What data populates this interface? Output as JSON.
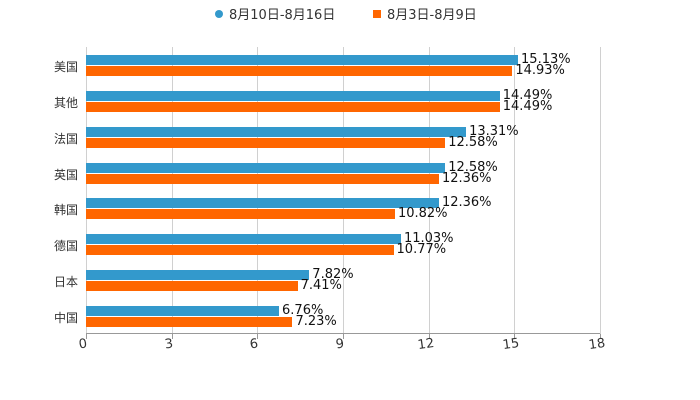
{
  "chart_data": {
    "type": "bar",
    "orientation": "horizontal",
    "title": "",
    "xlabel": "",
    "ylabel": "",
    "xlim": [
      0,
      18
    ],
    "xticks": [
      0,
      3,
      6,
      9,
      12,
      15,
      18
    ],
    "grid": true,
    "legend_position": "top",
    "categories": [
      "美国",
      "其他",
      "法国",
      "英国",
      "韩国",
      "德国",
      "日本",
      "中国"
    ],
    "series": [
      {
        "name": "8月10日-8月16日",
        "color": "#3399cc",
        "marker": "circle",
        "values": [
          15.13,
          14.49,
          13.31,
          12.58,
          12.36,
          11.03,
          7.82,
          6.76
        ],
        "labels": [
          "15.13%",
          "14.49%",
          "13.31%",
          "12.58%",
          "12.36%",
          "11.03%",
          "7.82%",
          "6.76%"
        ]
      },
      {
        "name": "8月3日-8月9日",
        "color": "#ff6600",
        "marker": "square",
        "values": [
          14.93,
          14.49,
          12.58,
          12.36,
          10.82,
          10.77,
          7.41,
          7.23
        ],
        "labels": [
          "14.93%",
          "14.49%",
          "12.58%",
          "12.36%",
          "10.82%",
          "10.77%",
          "7.41%",
          "7.23%"
        ]
      }
    ]
  },
  "legend": {
    "items": [
      {
        "label": "8月10日-8月16日",
        "color": "#3399cc"
      },
      {
        "label": "8月3日-8月9日",
        "color": "#ff6600"
      }
    ]
  },
  "axis": {
    "tick_labels": [
      "0",
      "3",
      "6",
      "9",
      "12",
      "15",
      "18"
    ]
  }
}
